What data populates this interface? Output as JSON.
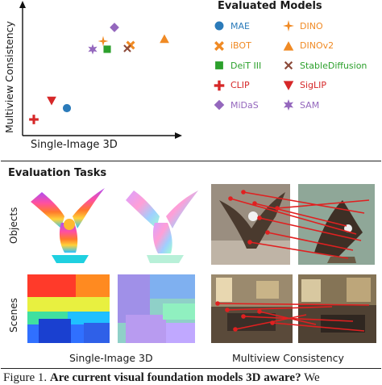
{
  "plot": {
    "ylabel": "Multiview Consistency",
    "xlabel": "Single-Image 3D"
  },
  "legend": {
    "title": "Evaluated Models",
    "items": [
      {
        "label": "MAE",
        "marker": "circle",
        "color": "#2b7bba"
      },
      {
        "label": "DINO",
        "marker": "star4",
        "color": "#f08a24"
      },
      {
        "label": "iBOT",
        "marker": "x",
        "color": "#f08a24"
      },
      {
        "label": "DINOv2",
        "marker": "triangle-up",
        "color": "#f08a24"
      },
      {
        "label": "DeiT III",
        "marker": "square",
        "color": "#2ca02c"
      },
      {
        "label": "StableDiffusion",
        "marker": "x-thin",
        "color": "#8c4a3a"
      },
      {
        "label": "CLIP",
        "marker": "plus",
        "color": "#d62728"
      },
      {
        "label": "SigLIP",
        "marker": "triangle-down",
        "color": "#d62728"
      },
      {
        "label": "MiDaS",
        "marker": "diamond",
        "color": "#9467bd"
      },
      {
        "label": "SAM",
        "marker": "star6",
        "color": "#9467bd"
      }
    ],
    "label_colors": {
      "MAE": "#2b7bba",
      "DINO": "#f08a24",
      "iBOT": "#f08a24",
      "DINOv2": "#f08a24",
      "DeiT III": "#2ca02c",
      "StableDiffusion": "#2ca02c",
      "CLIP": "#d62728",
      "SigLIP": "#d62728",
      "MiDaS": "#9467bd",
      "SAM": "#9467bd"
    }
  },
  "tasks": {
    "title": "Evaluation Tasks",
    "rows": [
      "Objects",
      "Scenes"
    ],
    "columns": [
      "Single-Image 3D",
      "Multiview Consistency"
    ]
  },
  "caption": {
    "prefix": "Figure 1.",
    "bold": "Are current visual foundation models 3D aware?",
    "tail": "We"
  }
}
